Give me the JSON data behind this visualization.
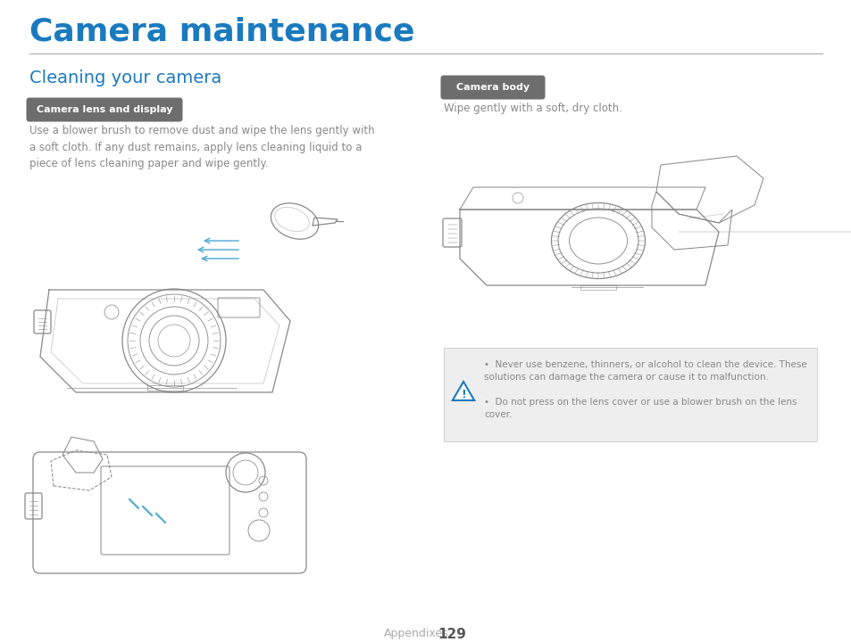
{
  "title": "Camera maintenance",
  "title_color": "#1a7abf",
  "title_fontsize": 26,
  "section_title": "Cleaning your camera",
  "section_title_color": "#1a7abf",
  "section_title_fontsize": 14,
  "badge1_text": "Camera lens and display",
  "badge1_color": "#6d6d6d",
  "badge1_text_color": "#ffffff",
  "badge2_text": "Camera body",
  "badge2_color": "#6d6d6d",
  "badge2_text_color": "#ffffff",
  "body_text1": "Use a blower brush to remove dust and wipe the lens gently with\na soft cloth. If any dust remains, apply lens cleaning liquid to a\npiece of lens cleaning paper and wipe gently.",
  "body_text2": "Wipe gently with a soft, dry cloth.",
  "warning_bullet1": "Never use benzene, thinners, or alcohol to clean the device. These\nsolutions can damage the camera or cause it to malfunction.",
  "warning_bullet2": "Do not press on the lens cover or use a blower brush on the lens\ncover.",
  "footer_left": "Appendixes",
  "footer_num": "129",
  "background_color": "#ffffff",
  "text_color": "#888888",
  "line_color": "#555555",
  "warning_bg": "#eeeeee",
  "warning_border": "#cccccc",
  "warning_triangle_color": "#1a7abf",
  "sketch_color": "#888888",
  "blue_color": "#4da6d4"
}
